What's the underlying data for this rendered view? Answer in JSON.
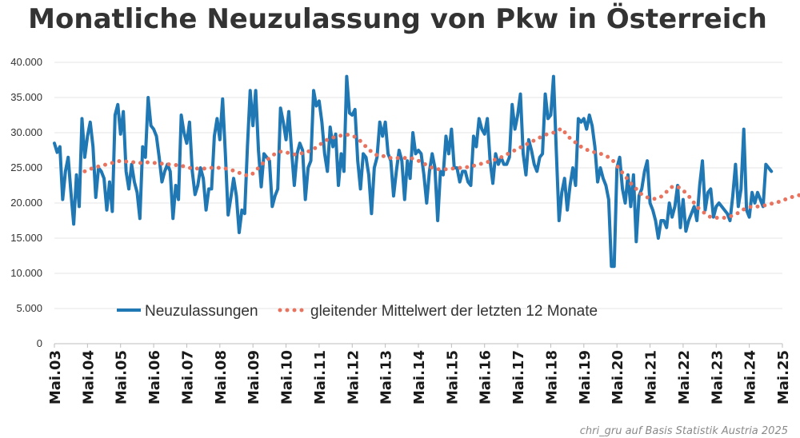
{
  "chart_data": {
    "type": "line",
    "title": "Monatliche Neuzulassung von Pkw in Österreich",
    "credit": "chri_gru auf Basis Statistik Austria 2025",
    "x_start": "2003-05",
    "x_frequency": "monthly",
    "xtick_labels": [
      "Mai.03",
      "Mai.04",
      "Mai.05",
      "Mai.06",
      "Mai.07",
      "Mai.08",
      "Mai.09",
      "Mai.10",
      "Mai.11",
      "Mai.12",
      "Mai.13",
      "Mai.14",
      "Mai.15",
      "Mai.16",
      "Mai.17",
      "Mai.18",
      "Mai.19",
      "Mai.20",
      "Mai.21",
      "Mai.22",
      "Mai.23",
      "Mai.24",
      "Mai.25"
    ],
    "ytick_labels": [
      "0",
      "5.000",
      "10.000",
      "15.000",
      "20.000",
      "25.000",
      "30.000",
      "35.000",
      "40.000"
    ],
    "ylim": [
      0,
      40000
    ],
    "grid": true,
    "legend_position": "bottom-center",
    "series": [
      {
        "name": "Neuzulassungen",
        "color": "#1f77b4",
        "style": "solid",
        "values": [
          28500,
          27200,
          28000,
          20500,
          24500,
          26500,
          21500,
          17000,
          24000,
          19500,
          32000,
          26500,
          29500,
          31500,
          28000,
          20800,
          25000,
          24500,
          23500,
          19000,
          23000,
          18800,
          32500,
          34000,
          29800,
          33000,
          24500,
          22000,
          25500,
          23000,
          21500,
          17800,
          28000,
          26500,
          35000,
          31000,
          30500,
          29500,
          26500,
          23000,
          24500,
          25500,
          24500,
          17800,
          22500,
          20500,
          32500,
          30000,
          28500,
          31500,
          24500,
          21200,
          22500,
          25000,
          23500,
          19000,
          22000,
          22000,
          29500,
          32000,
          29000,
          34800,
          27000,
          18300,
          20800,
          23500,
          21000,
          15800,
          19000,
          18500,
          28000,
          36000,
          31000,
          36000,
          27500,
          22300,
          27000,
          26500,
          26000,
          19500,
          21000,
          22000,
          33500,
          31500,
          29000,
          33000,
          27500,
          22500,
          27000,
          28500,
          27500,
          20500,
          25000,
          26000,
          36000,
          33800,
          34500,
          31500,
          27000,
          24500,
          30800,
          28000,
          29800,
          22500,
          27000,
          24500,
          38000,
          32800,
          32500,
          33300,
          26000,
          22000,
          27000,
          26500,
          24000,
          18500,
          25000,
          26500,
          31500,
          29500,
          31500,
          27000,
          26000,
          21000,
          24500,
          27500,
          26000,
          20500,
          26000,
          23500,
          30000,
          27000,
          27500,
          27000,
          24000,
          20000,
          24500,
          27000,
          25000,
          17500,
          24500,
          24000,
          29500,
          27000,
          30500,
          25000,
          25000,
          23000,
          24500,
          24500,
          23000,
          22500,
          29500,
          28000,
          32000,
          30500,
          29800,
          32000,
          26000,
          22800,
          27000,
          25500,
          26500,
          25500,
          25500,
          26500,
          34000,
          30500,
          32500,
          35500,
          27000,
          24000,
          29000,
          27500,
          25500,
          24500,
          26500,
          27000,
          35500,
          32000,
          32500,
          38000,
          27500,
          17500,
          21500,
          23500,
          19000,
          22500,
          25000,
          22500,
          32000,
          31500,
          32000,
          30500,
          32500,
          31000,
          28000,
          23000,
          25000,
          23500,
          22500,
          20500,
          11000,
          11000,
          25000,
          26500,
          22000,
          20000,
          24000,
          19500,
          24000,
          14500,
          21000,
          22000,
          24500,
          26000,
          20000,
          19000,
          17500,
          15000,
          17500,
          17500,
          16500,
          20000,
          18000,
          19500,
          22500,
          16500,
          20500,
          16000,
          17500,
          18500,
          19500,
          17500,
          22500,
          26000,
          19000,
          21500,
          22000,
          18000,
          19500,
          20000,
          19500,
          19000,
          18500,
          17500,
          21000,
          25500,
          19500,
          22000,
          30500,
          19000,
          18000,
          21500,
          20000,
          21500,
          20500,
          19500,
          25500,
          25000,
          24500
        ]
      },
      {
        "name": "gleitender Mittelwert der letzten 12 Monate",
        "color": "#e8735f",
        "style": "dotted",
        "values": [
          null,
          null,
          null,
          null,
          null,
          null,
          null,
          null,
          null,
          null,
          null,
          24500,
          24600,
          24800,
          25000,
          25100,
          25200,
          25300,
          25400,
          25500,
          25600,
          25700,
          25800,
          25900,
          26000,
          26000,
          25900,
          25900,
          25800,
          25800,
          25800,
          25700,
          25700,
          25700,
          25800,
          25800,
          25700,
          25700,
          25600,
          25600,
          25500,
          25500,
          25500,
          25500,
          25400,
          25300,
          25300,
          25200,
          25100,
          25000,
          24900,
          24900,
          24900,
          24900,
          24900,
          24900,
          24900,
          25000,
          25000,
          25000,
          25000,
          25000,
          24900,
          24800,
          24700,
          24600,
          24400,
          24300,
          24100,
          24000,
          23900,
          23900,
          24200,
          24600,
          25000,
          25400,
          25800,
          26100,
          26400,
          26700,
          27000,
          27200,
          27300,
          27300,
          27200,
          27100,
          27000,
          26900,
          26900,
          27000,
          27100,
          27200,
          27300,
          27500,
          27700,
          27900,
          28200,
          28500,
          28800,
          29000,
          29200,
          29300,
          29400,
          29500,
          29600,
          29700,
          29700,
          29700,
          29600,
          29400,
          29100,
          28800,
          28400,
          28000,
          27600,
          27300,
          27000,
          26800,
          26700,
          26700,
          26600,
          26500,
          26400,
          26400,
          26400,
          26400,
          26400,
          26400,
          26400,
          26400,
          26300,
          26200,
          26000,
          25800,
          25600,
          25400,
          25200,
          25000,
          24900,
          24800,
          24800,
          24800,
          24800,
          24900,
          24900,
          24900,
          24900,
          25000,
          25000,
          25100,
          25100,
          25200,
          25300,
          25400,
          25500,
          25600,
          25700,
          25800,
          26000,
          26100,
          26200,
          26400,
          26500,
          26700,
          26900,
          27100,
          27300,
          27500,
          27700,
          27900,
          28100,
          28300,
          28500,
          28700,
          28900,
          29100,
          29300,
          29500,
          29700,
          29800,
          29900,
          30000,
          30200,
          30400,
          30600,
          30100,
          29600,
          29200,
          28900,
          28600,
          28300,
          28000,
          27800,
          27600,
          27400,
          27300,
          27200,
          27100,
          27000,
          26900,
          26700,
          26500,
          26300,
          25800,
          25300,
          24800,
          24300,
          23800,
          23300,
          22800,
          22400,
          22000,
          21600,
          21200,
          21000,
          20800,
          20700,
          20600,
          20600,
          20700,
          20900,
          21200,
          21600,
          22000,
          22300,
          22400,
          22300,
          22100,
          21800,
          21400,
          21000,
          20500,
          20000,
          19500,
          19100,
          18800,
          18500,
          18200,
          18000,
          17900,
          17900,
          17900,
          17900,
          17900,
          18000,
          18100,
          18200,
          18400,
          18600,
          18900,
          19100,
          19300,
          19400,
          19500,
          19500,
          19500,
          19600,
          19600,
          19700,
          19800,
          19900,
          20000,
          20100,
          20200,
          20300,
          20500,
          20600,
          20800,
          20900,
          21000,
          21100,
          21200,
          21300,
          21400,
          21600
        ]
      }
    ]
  }
}
